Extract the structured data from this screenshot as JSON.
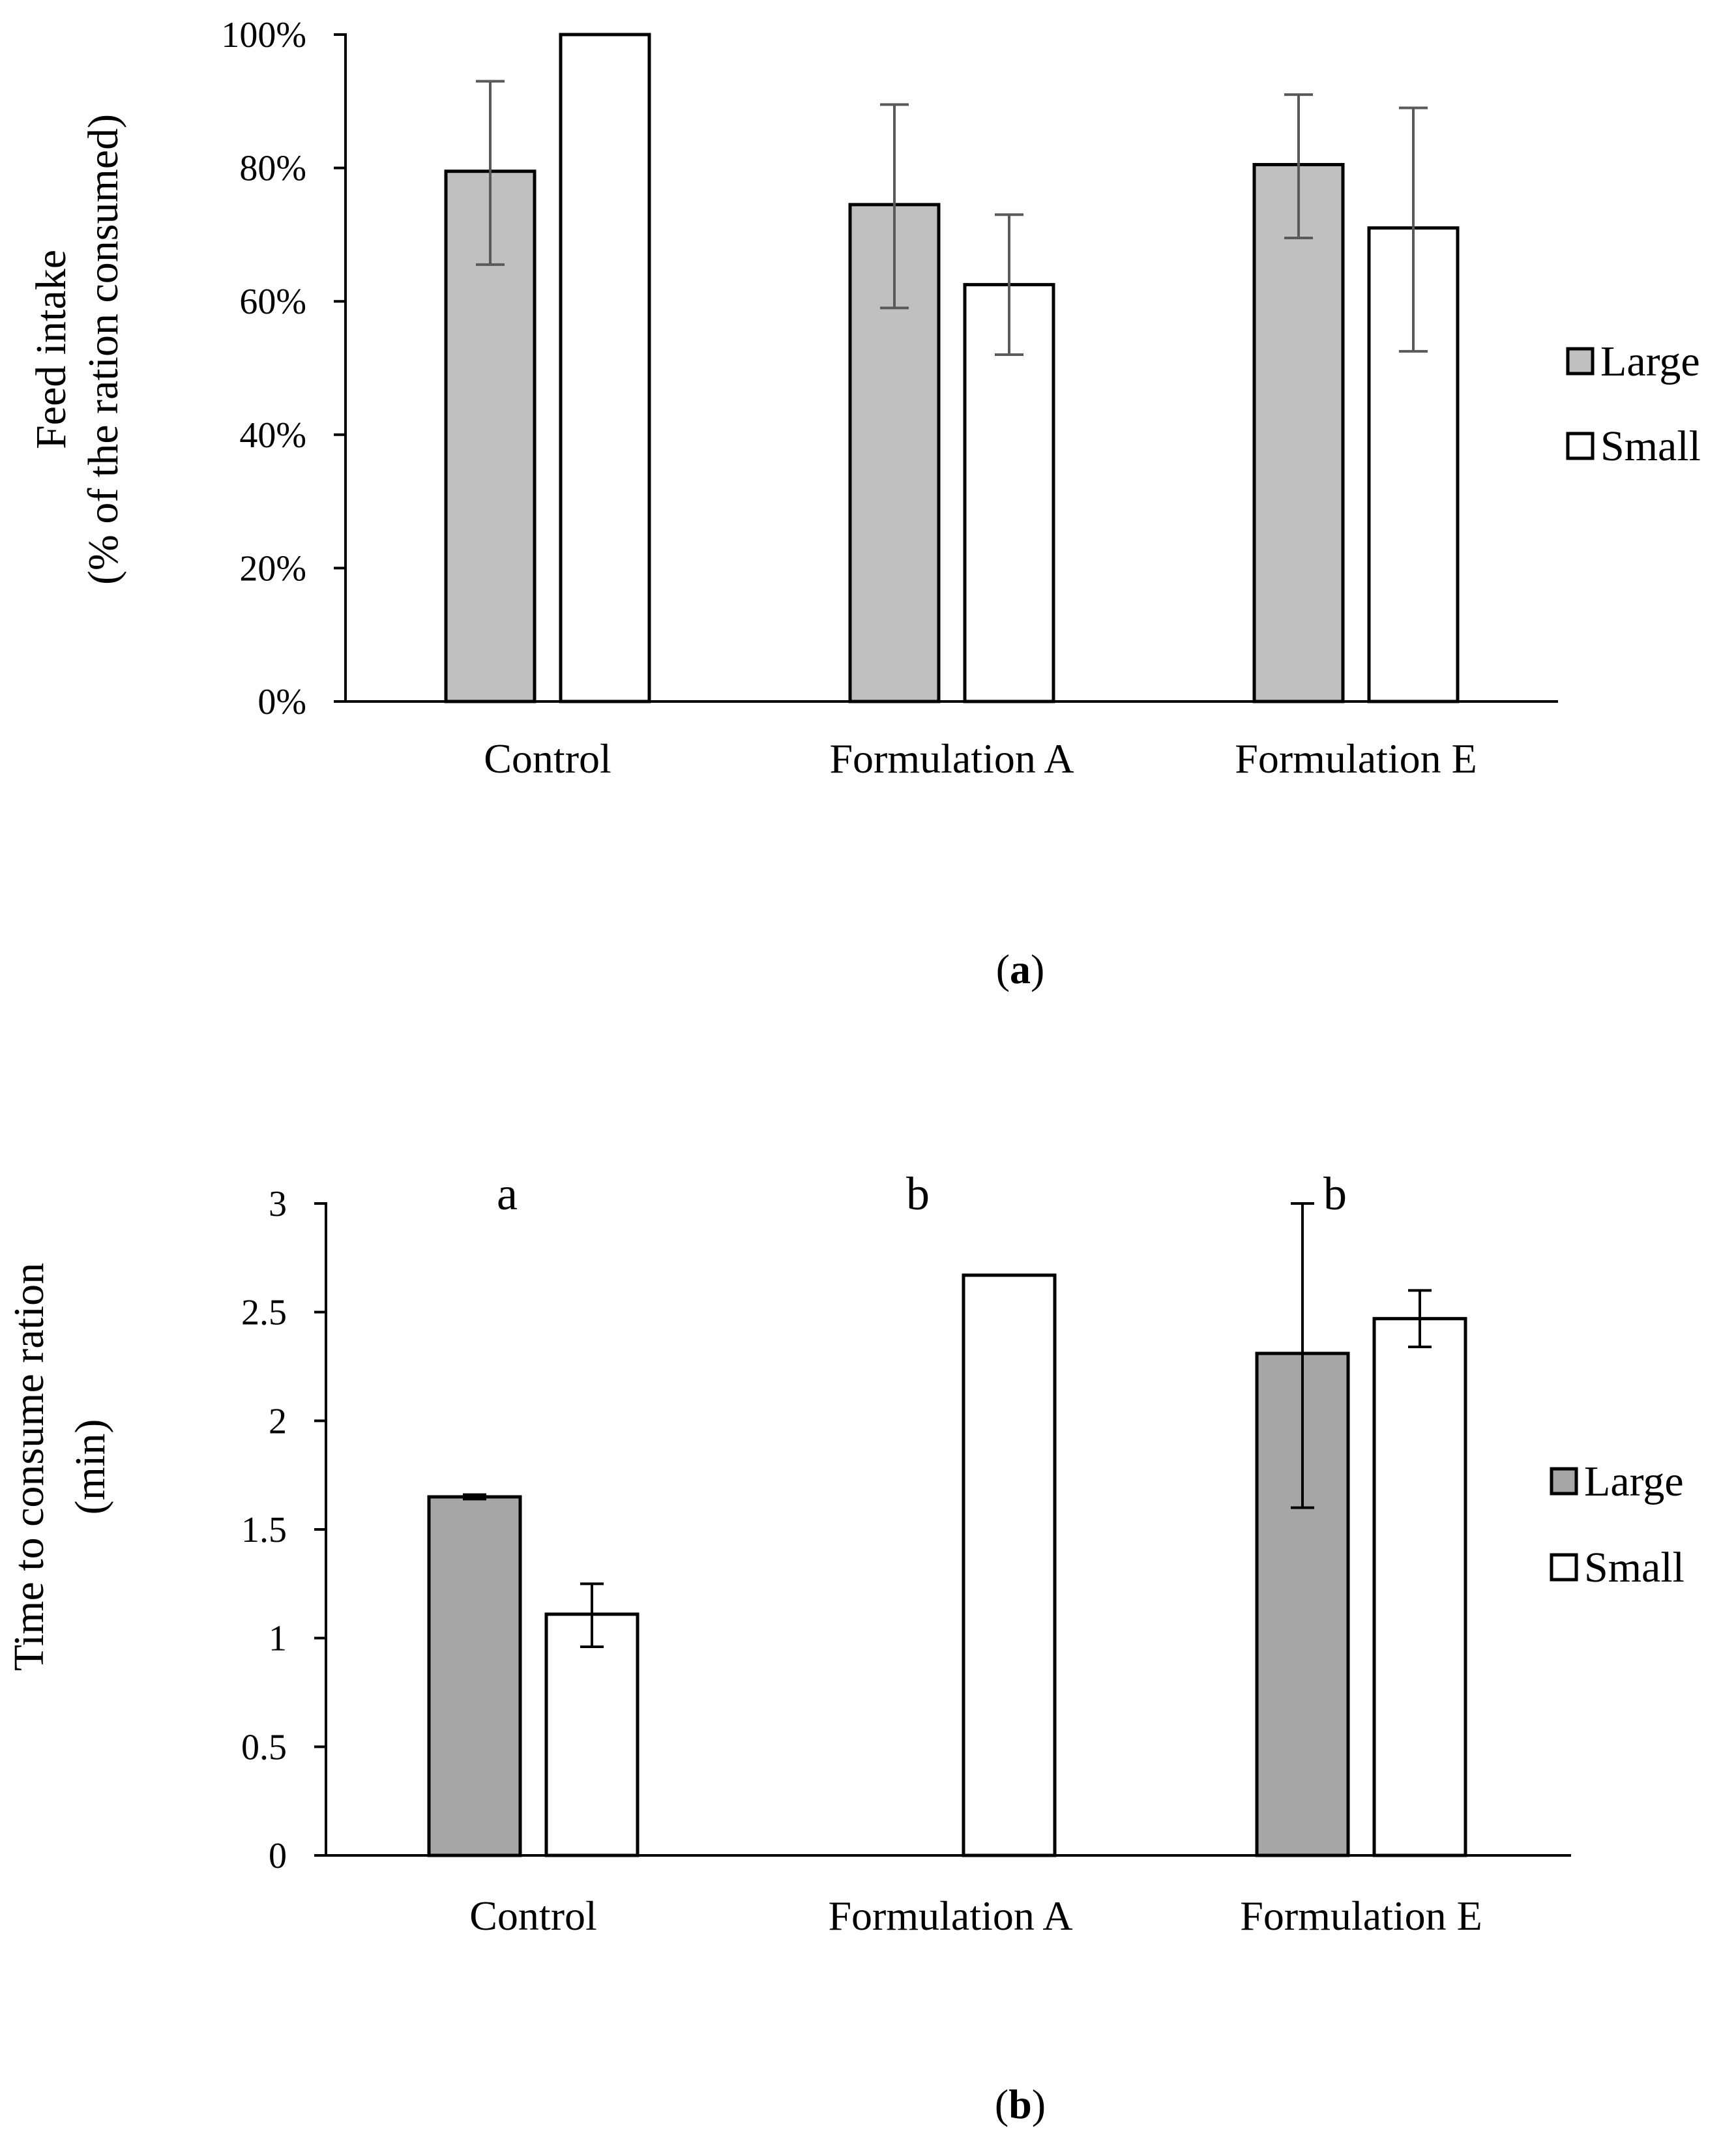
{
  "chart_data": [
    {
      "type": "bar",
      "panel_label": "a",
      "categories": [
        "Control",
        "Formulation A",
        "Formulation E"
      ],
      "ylabel_line1": "Feed intake",
      "ylabel_line2": "(% of the ration consumed)",
      "xlabel": "",
      "ylim": [
        0,
        100
      ],
      "yticks": [
        0,
        20,
        40,
        60,
        80,
        100
      ],
      "ytick_labels": [
        "0%",
        "20%",
        "40%",
        "60%",
        "80%",
        "100%"
      ],
      "legend_position": "right",
      "series": [
        {
          "name": "Large",
          "color": "#c0c0c0",
          "values": [
            79.5,
            74.5,
            80.5
          ],
          "err_low": [
            65.5,
            59,
            69.5
          ],
          "err_high": [
            93,
            89.5,
            91
          ]
        },
        {
          "name": "Small",
          "color": "#ffffff",
          "values": [
            100,
            62.5,
            71
          ],
          "err_low": [
            100,
            52,
            52.5
          ],
          "err_high": [
            100,
            73,
            89
          ]
        }
      ],
      "error_bar_color": "#595959",
      "annotations": []
    },
    {
      "type": "bar",
      "panel_label": "b",
      "categories": [
        "Control",
        "Formulation A",
        "Formulation E"
      ],
      "ylabel_line1": "Time to consume ration",
      "ylabel_line2": "(min)",
      "xlabel": "",
      "ylim": [
        0,
        3
      ],
      "yticks": [
        0,
        0.5,
        1,
        1.5,
        2,
        2.5,
        3
      ],
      "ytick_labels": [
        "0",
        "0.5",
        "1",
        "1.5",
        "2",
        "2.5",
        "3"
      ],
      "legend_position": "right",
      "series": [
        {
          "name": "Large",
          "color": "#a6a6a6",
          "values": [
            1.65,
            null,
            2.31
          ],
          "err_low": [
            1.64,
            null,
            1.6
          ],
          "err_high": [
            1.66,
            null,
            3.0
          ]
        },
        {
          "name": "Small",
          "color": "#ffffff",
          "values": [
            1.11,
            2.67,
            2.47
          ],
          "err_low": [
            0.96,
            2.67,
            2.34
          ],
          "err_high": [
            1.25,
            2.67,
            2.6
          ]
        }
      ],
      "error_bar_color": "#000000",
      "annotations": [
        "a",
        "b",
        "b"
      ]
    }
  ]
}
